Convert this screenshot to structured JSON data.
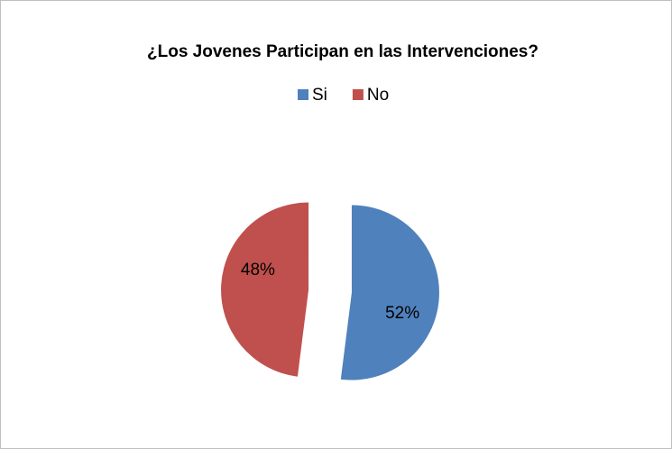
{
  "chart_data": {
    "type": "pie",
    "title": "¿Los Jovenes Participan en las Intervenciones?",
    "categories": [
      "Si",
      "No"
    ],
    "values": [
      52,
      48
    ],
    "value_labels": [
      "52%",
      "48%"
    ],
    "colors": [
      "#4f81bd",
      "#c0504d"
    ],
    "legend": "top",
    "exploded": true
  }
}
